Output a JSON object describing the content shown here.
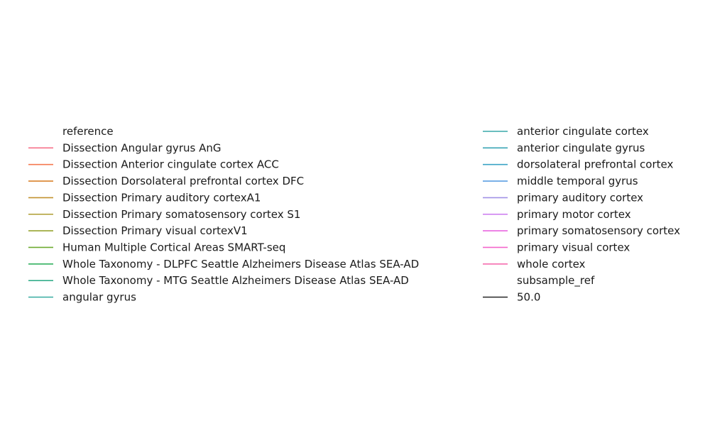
{
  "chart_data": {
    "type": "line",
    "legend": {
      "placement": "center",
      "columns": 2,
      "groups": [
        {
          "title": "reference",
          "entries": [
            {
              "label": "Dissection Angular gyrus AnG",
              "color": "#f77189"
            },
            {
              "label": "Dissection Anterior cingulate cortex ACC",
              "color": "#f57a50"
            },
            {
              "label": "Dissection Dorsolateral prefrontal cortex DFC",
              "color": "#d9822b"
            },
            {
              "label": "Dissection Primary auditory cortexA1",
              "color": "#c2912f"
            },
            {
              "label": "Dissection Primary somatosensory cortex S1",
              "color": "#ae9d31"
            },
            {
              "label": "Dissection Primary visual cortexV1",
              "color": "#97a431"
            },
            {
              "label": "Human Multiple Cortical Areas SMART-seq",
              "color": "#6eab31"
            },
            {
              "label": "Whole Taxonomy - DLPFC Seattle Alzheimers Disease Atlas SEA-AD",
              "color": "#33b05f"
            },
            {
              "label": "Whole Taxonomy - MTG Seattle Alzheimers Disease Atlas SEA-AD",
              "color": "#35ad8b"
            },
            {
              "label": "angular gyrus",
              "color": "#37aba0"
            },
            {
              "label": "anterior cingulate cortex",
              "color": "#38a9aa"
            },
            {
              "label": "anterior cingulate gyrus",
              "color": "#3aa6b5"
            },
            {
              "label": "dorsolateral prefrontal cortex",
              "color": "#3ba3c6"
            },
            {
              "label": "middle temporal gyrus",
              "color": "#5b9ee2"
            },
            {
              "label": "primary auditory cortex",
              "color": "#a091e6"
            },
            {
              "label": "primary motor cortex",
              "color": "#cb79ef"
            },
            {
              "label": "primary somatosensory cortex",
              "color": "#e967e0"
            },
            {
              "label": "primary visual cortex",
              "color": "#f466cc"
            },
            {
              "label": "whole cortex",
              "color": "#f56eaf"
            }
          ]
        },
        {
          "title": "subsample_ref",
          "entries": [
            {
              "label": "50.0",
              "color": "#262626"
            }
          ]
        }
      ]
    }
  }
}
